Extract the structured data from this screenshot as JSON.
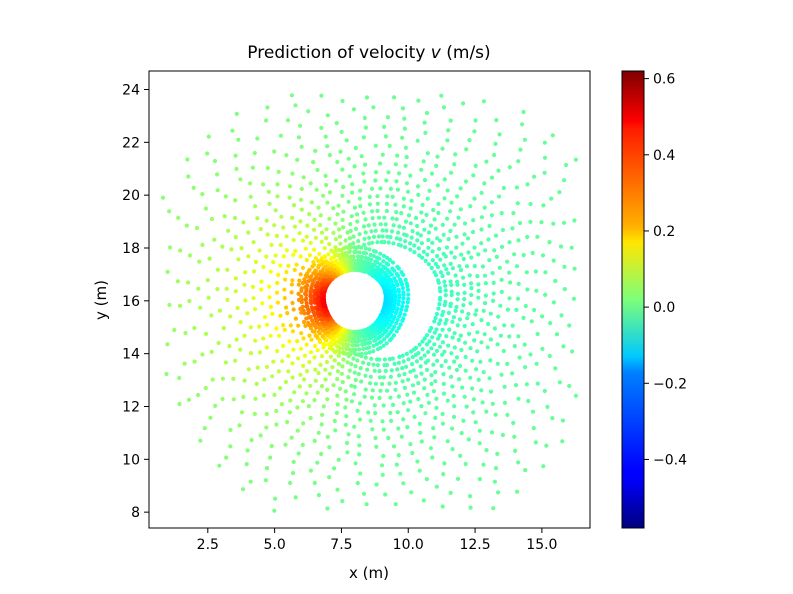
{
  "chart_data": {
    "type": "scatter",
    "title_main": "Prediction of velocity ",
    "title_var": "v",
    "title_unit": " (m/s)",
    "xlabel": "x (m)",
    "ylabel": "y (m)",
    "xlim": [
      0.3,
      16.8
    ],
    "ylim": [
      7.4,
      24.7
    ],
    "xticks": [
      2.5,
      5.0,
      7.5,
      10.0,
      12.5,
      15.0
    ],
    "xtick_labels": [
      "2.5",
      "5.0",
      "7.5",
      "10.0",
      "12.5",
      "15.0"
    ],
    "yticks": [
      8,
      10,
      12,
      14,
      16,
      18,
      20,
      22,
      24
    ],
    "ytick_labels": [
      "8",
      "10",
      "12",
      "14",
      "16",
      "18",
      "20",
      "22",
      "24"
    ],
    "colormap": "jet",
    "colorbar_range": [
      -0.58,
      0.62
    ],
    "colorbar_ticks": [
      -0.4,
      -0.2,
      0.0,
      0.2,
      0.4,
      0.6
    ],
    "colorbar_tick_labels": [
      "−0.4",
      "−0.2",
      "0.0",
      "0.2",
      "0.4",
      "0.6"
    ],
    "cylinder": {
      "center": [
        8.0,
        16.0
      ],
      "semi_axes": [
        0.45,
        1.05
      ],
      "rotation_deg": -25
    },
    "mesh_description": "radial point cloud around an ellipse-shaped obstacle, denser near the surface",
    "mesh_center": [
      9.0,
      16.0
    ],
    "mesh_radius": 7.6,
    "value_range": {
      "min": -0.58,
      "max": 0.62
    }
  }
}
